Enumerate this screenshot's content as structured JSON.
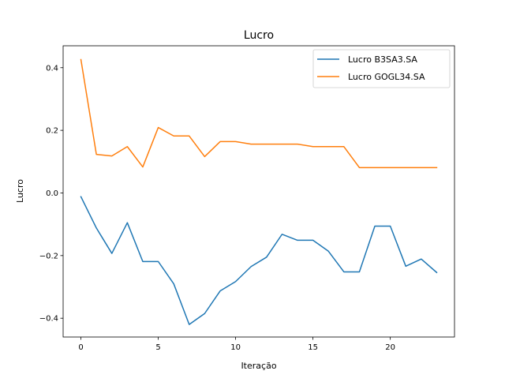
{
  "chart_data": {
    "type": "line",
    "title": "Lucro",
    "xlabel": "Iteração",
    "ylabel": "Lucro",
    "xlim": [
      -1.15,
      24.15
    ],
    "ylim": [
      -0.46,
      0.47
    ],
    "xticks": [
      0,
      5,
      10,
      15,
      20
    ],
    "xtick_labels": [
      "0",
      "5",
      "10",
      "15",
      "20"
    ],
    "yticks": [
      -0.4,
      -0.2,
      0.0,
      0.2,
      0.4
    ],
    "ytick_labels": [
      "−0.4",
      "−0.2",
      "0.0",
      "0.2",
      "0.4"
    ],
    "grid": false,
    "legend_position": "top-right",
    "x": [
      0,
      1,
      2,
      3,
      4,
      5,
      6,
      7,
      8,
      9,
      10,
      11,
      12,
      13,
      14,
      15,
      16,
      17,
      18,
      19,
      20,
      21,
      22,
      23
    ],
    "series": [
      {
        "name": "Lucro B3SA3.SA",
        "color": "#1f77b4",
        "values": [
          -0.012,
          -0.112,
          -0.193,
          -0.095,
          -0.219,
          -0.219,
          -0.29,
          -0.42,
          -0.385,
          -0.313,
          -0.283,
          -0.235,
          -0.205,
          -0.132,
          -0.151,
          -0.151,
          -0.186,
          -0.252,
          -0.252,
          -0.106,
          -0.106,
          -0.234,
          -0.211,
          -0.254
        ]
      },
      {
        "name": "Lucro GOGL34.SA",
        "color": "#ff7f0e",
        "values": [
          0.426,
          0.123,
          0.118,
          0.148,
          0.083,
          0.209,
          0.182,
          0.182,
          0.116,
          0.164,
          0.164,
          0.156,
          0.156,
          0.156,
          0.156,
          0.148,
          0.148,
          0.148,
          0.081,
          0.081,
          0.081,
          0.081,
          0.081,
          0.081
        ]
      }
    ]
  }
}
